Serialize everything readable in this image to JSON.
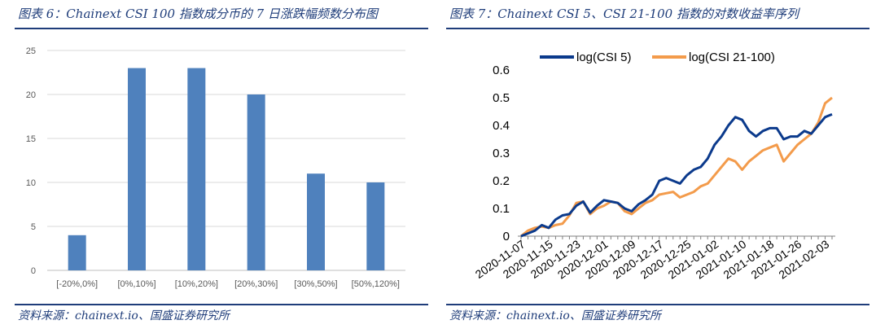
{
  "figures": [
    {
      "title": "图表 6：Chainext CSI 100 指数成分币的 7 日涨跌幅频数分布图",
      "source": "资料来源：chainext.io、国盛证券研究所"
    },
    {
      "title": "图表 7：Chainext CSI 5、CSI 21-100 指数的对数收益率序列",
      "source": "资料来源：chainext.io、国盛证券研究所"
    }
  ],
  "chart_data": [
    {
      "type": "bar",
      "title": "",
      "categories": [
        "[-20%,0%]",
        "[0%,10%]",
        "[10%,20%]",
        "[20%,30%]",
        "[30%,50%]",
        "[50%,120%]"
      ],
      "values": [
        4,
        23,
        23,
        20,
        11,
        10
      ],
      "ylim": [
        0,
        25
      ],
      "yticks": [
        "0",
        "5",
        "10",
        "15",
        "20",
        "25"
      ],
      "grid": true,
      "colors": {
        "bar": "#4f81bd",
        "grid": "#d9d9d9"
      }
    },
    {
      "type": "line",
      "title": "",
      "x": [
        "2020-11-07",
        "2020-11-09",
        "2020-11-11",
        "2020-11-13",
        "2020-11-15",
        "2020-11-17",
        "2020-11-19",
        "2020-11-21",
        "2020-11-23",
        "2020-11-25",
        "2020-11-27",
        "2020-11-29",
        "2020-12-01",
        "2020-12-03",
        "2020-12-05",
        "2020-12-07",
        "2020-12-09",
        "2020-12-11",
        "2020-12-13",
        "2020-12-15",
        "2020-12-17",
        "2020-12-19",
        "2020-12-21",
        "2020-12-23",
        "2020-12-25",
        "2020-12-27",
        "2020-12-29",
        "2020-12-31",
        "2021-01-02",
        "2021-01-04",
        "2021-01-06",
        "2021-01-08",
        "2021-01-10",
        "2021-01-12",
        "2021-01-14",
        "2021-01-16",
        "2021-01-18",
        "2021-01-20",
        "2021-01-22",
        "2021-01-24",
        "2021-01-26",
        "2021-01-28",
        "2021-01-30",
        "2021-02-01",
        "2021-02-03",
        "2021-02-05"
      ],
      "xticks": [
        "2020-11-07",
        "2020-11-15",
        "2020-11-23",
        "2020-12-01",
        "2020-12-09",
        "2020-12-17",
        "2020-12-25",
        "2021-01-02",
        "2021-01-10",
        "2021-01-18",
        "2021-01-26",
        "2021-02-03"
      ],
      "series": [
        {
          "name": "log(CSI 5)",
          "color": "#0b3a8c",
          "values": [
            0.0,
            0.01,
            0.02,
            0.04,
            0.03,
            0.06,
            0.075,
            0.08,
            0.11,
            0.125,
            0.085,
            0.11,
            0.13,
            0.125,
            0.12,
            0.1,
            0.09,
            0.115,
            0.13,
            0.15,
            0.2,
            0.21,
            0.2,
            0.19,
            0.22,
            0.24,
            0.25,
            0.28,
            0.33,
            0.36,
            0.4,
            0.43,
            0.42,
            0.38,
            0.36,
            0.38,
            0.39,
            0.39,
            0.35,
            0.36,
            0.36,
            0.38,
            0.37,
            0.4,
            0.43,
            0.44
          ]
        },
        {
          "name": "log(CSI 21-100)",
          "color": "#f39b4b",
          "values": [
            0.0,
            0.02,
            0.03,
            0.035,
            0.03,
            0.04,
            0.045,
            0.075,
            0.12,
            0.125,
            0.08,
            0.1,
            0.11,
            0.125,
            0.12,
            0.09,
            0.08,
            0.1,
            0.12,
            0.13,
            0.15,
            0.155,
            0.16,
            0.14,
            0.15,
            0.16,
            0.18,
            0.19,
            0.22,
            0.25,
            0.28,
            0.27,
            0.24,
            0.27,
            0.29,
            0.31,
            0.32,
            0.33,
            0.27,
            0.3,
            0.33,
            0.35,
            0.37,
            0.41,
            0.48,
            0.5
          ]
        }
      ],
      "ylim": [
        0,
        0.6
      ],
      "yticks": [
        "0",
        "0.1",
        "0.2",
        "0.3",
        "0.4",
        "0.5",
        "0.6"
      ],
      "grid": false,
      "legend": "top"
    }
  ]
}
